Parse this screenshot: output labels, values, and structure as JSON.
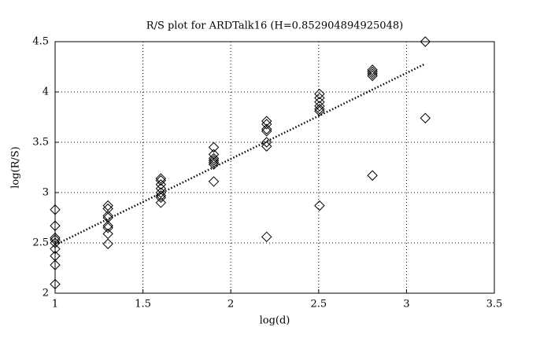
{
  "chart_data": {
    "type": "scatter",
    "title": "R/S plot for ARDTalk16 (H=0.852904894925048)",
    "x_label": "log(d)",
    "y_label": "log(R/S)",
    "xlim": [
      1,
      3.5
    ],
    "xticks": [
      1,
      1.5,
      2,
      2.5,
      3,
      3.5
    ],
    "ylim": [
      2,
      4.5
    ],
    "yticks": [
      2,
      2.5,
      3,
      3.5,
      4,
      4.5
    ],
    "grid": true,
    "series": [
      {
        "style": "markers",
        "color": "#000000",
        "x": [
          1,
          1,
          1,
          1,
          1,
          1,
          1,
          1,
          1,
          1.301,
          1.301,
          1.301,
          1.301,
          1.301,
          1.301,
          1.301,
          1.301,
          1.602,
          1.602,
          1.602,
          1.602,
          1.602,
          1.602,
          1.602,
          1.602,
          1.903,
          1.903,
          1.903,
          1.903,
          1.903,
          1.903,
          1.903,
          2.204,
          2.204,
          2.204,
          2.204,
          2.204,
          2.204,
          2.204,
          2.505,
          2.505,
          2.505,
          2.505,
          2.505,
          2.505,
          2.505,
          2.806,
          2.806,
          2.806,
          2.806,
          2.806,
          3.107,
          3.107
        ],
        "values": [
          2.83,
          2.67,
          2.55,
          2.53,
          2.5,
          2.44,
          2.37,
          2.28,
          2.09,
          2.87,
          2.84,
          2.77,
          2.75,
          2.67,
          2.65,
          2.59,
          2.49,
          3.14,
          3.12,
          3.08,
          3.04,
          3.0,
          2.97,
          2.95,
          2.9,
          3.45,
          3.38,
          3.34,
          3.32,
          3.3,
          3.28,
          3.11,
          3.71,
          3.68,
          3.63,
          3.61,
          3.5,
          3.46,
          2.56,
          3.98,
          3.94,
          3.9,
          3.86,
          3.83,
          3.81,
          2.87,
          4.22,
          4.2,
          4.18,
          4.16,
          3.17,
          4.5,
          3.74
        ]
      },
      {
        "style": "dotted-line",
        "color": "#000000",
        "x": [
          1,
          3.107
        ],
        "values": [
          2.48,
          4.28
        ]
      }
    ]
  }
}
